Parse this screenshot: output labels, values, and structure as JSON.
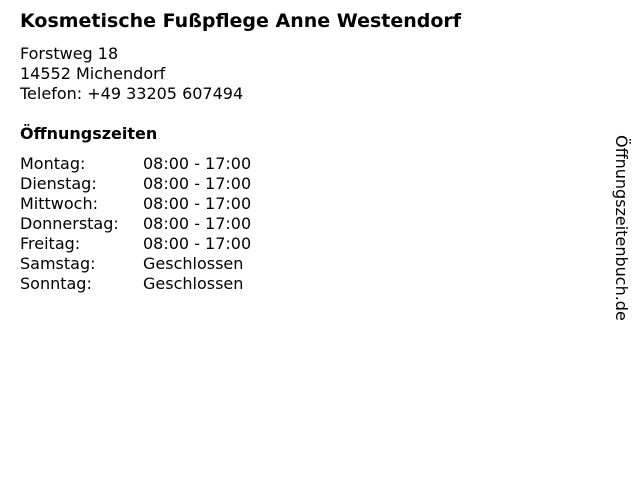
{
  "title": "Kosmetische Fußpflege Anne Westendorf",
  "address": {
    "street": "Forstweg 18",
    "city": "14552 Michendorf",
    "phone": "Telefon: +49 33205 607494"
  },
  "hours_heading": "Öffnungszeiten",
  "hours": [
    {
      "day": "Montag:",
      "time": "08:00 - 17:00"
    },
    {
      "day": "Dienstag:",
      "time": "08:00 - 17:00"
    },
    {
      "day": "Mittwoch:",
      "time": "08:00 - 17:00"
    },
    {
      "day": "Donnerstag:",
      "time": "08:00 - 17:00"
    },
    {
      "day": "Freitag:",
      "time": "08:00 - 17:00"
    },
    {
      "day": "Samstag:",
      "time": "Geschlossen"
    },
    {
      "day": "Sonntag:",
      "time": "Geschlossen"
    }
  ],
  "watermark": "Öffnungszeitenbuch.de"
}
